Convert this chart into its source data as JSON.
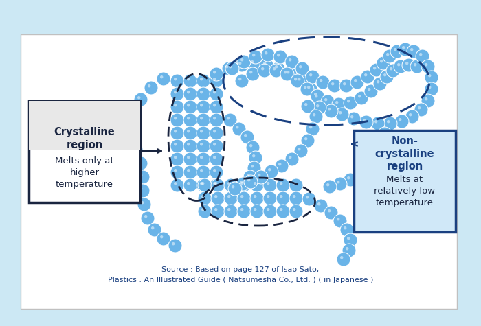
{
  "bg_outer": "#cce8f4",
  "bg_inner": "#ffffff",
  "bead_color": "#6ab4e8",
  "bead_highlight": "#a8d4f0",
  "dashed_cryst_color": "#1a2540",
  "dashed_noncryst_color": "#1a4080",
  "box_cryst_title_bg": "#e8e8e8",
  "box_cryst_bg": "#ffffff",
  "box_cryst_border": "#1a2540",
  "box_noncryst_bg": "#d0e8f8",
  "box_noncryst_border": "#1a4080",
  "text_dark": "#1a2540",
  "text_blue": "#1a4080",
  "source_text1": "Source : Based on page 127 of Isao Sato,",
  "source_text2": "Plastics : An Illustrated Guide ( Natsumesha Co., Ltd. ) ( in Japanese )",
  "crystalline_title": "Crystalline\nregion",
  "crystalline_sub": "Melts only at\nhigher\ntemperature",
  "noncryst_title": "Non-\ncrystalline\nregion",
  "noncryst_sub": "Melts at\nrelatively low\ntemperature",
  "bead_r": 10
}
